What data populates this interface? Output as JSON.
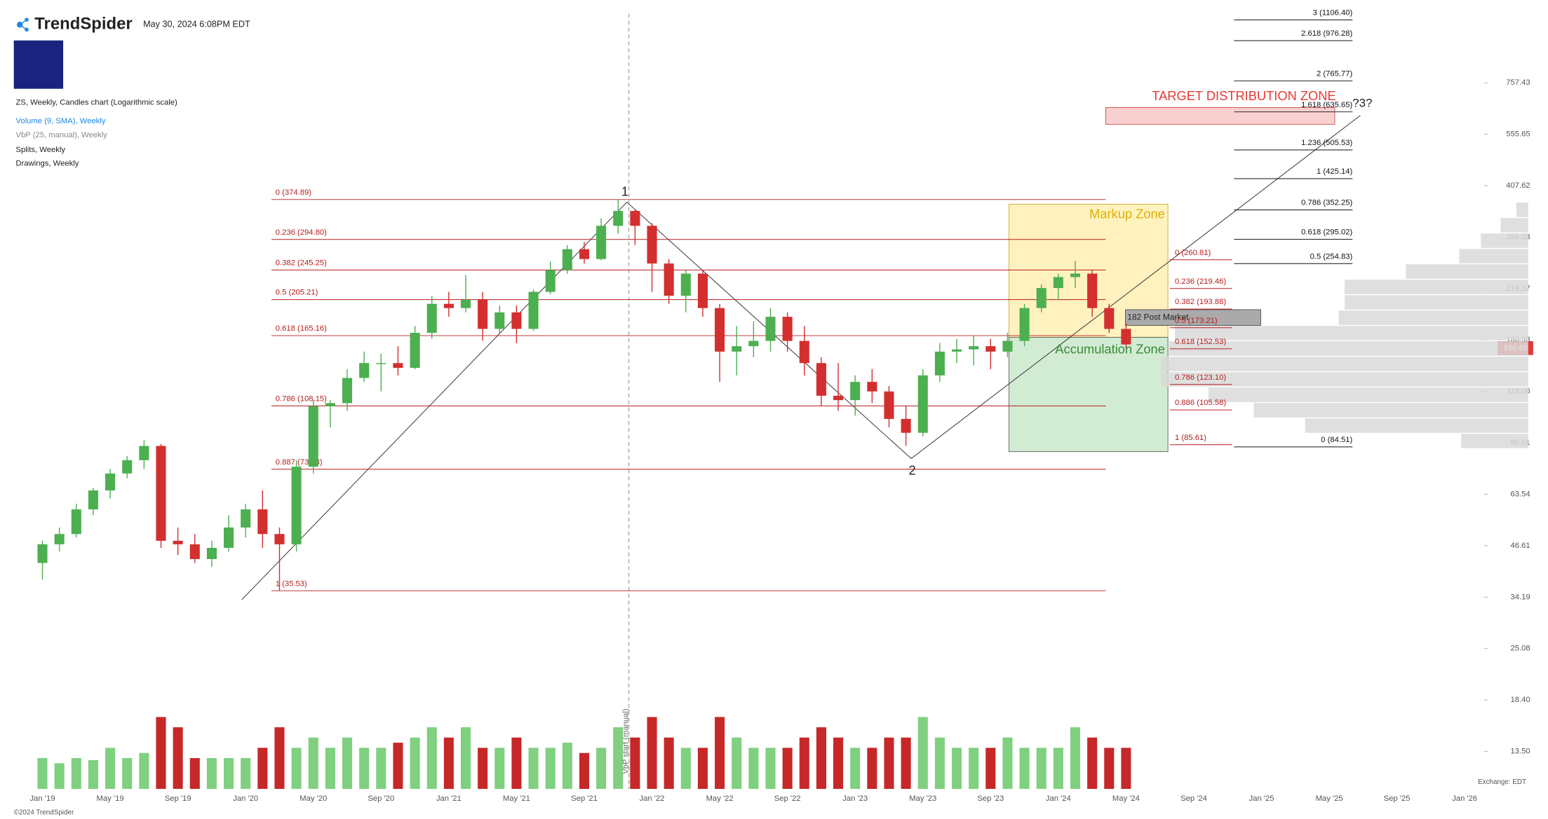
{
  "header": {
    "brand": "TrendSpider",
    "timestamp": "May 30, 2024 6:08PM EDT"
  },
  "legend": [
    "ZS, Weekly, Candles chart (Logarithmic scale)",
    "Volume (9, SMA), Weekly",
    "VbP (25, manual), Weekly",
    "Splits, Weekly",
    "Drawings, Weekly"
  ],
  "chart_data": {
    "type": "candlestick",
    "log_scale": true,
    "categories": [
      "Jan '19",
      null,
      null,
      null,
      "May '19",
      null,
      null,
      null,
      "Sep '19",
      null,
      null,
      null,
      "Jan '20",
      null,
      null,
      null,
      "May '20",
      null,
      null,
      null,
      "Sep '20",
      null,
      null,
      null,
      "Jan '21",
      null,
      null,
      null,
      "May '21",
      null,
      null,
      null,
      "Sep '21",
      null,
      null,
      null,
      "Jan '22",
      null,
      null,
      null,
      "May '22",
      null,
      null,
      null,
      "Sep '22",
      null,
      null,
      null,
      "Jan '23",
      null,
      null,
      null,
      "May '23",
      null,
      null,
      null,
      "Sep '23",
      null,
      null,
      null,
      "Jan '24",
      null,
      null,
      null,
      "May '24",
      null,
      null,
      null,
      "Sep '24",
      null,
      null,
      null,
      "Jan '25",
      null,
      null,
      null,
      "May '25",
      null,
      null,
      null,
      "Sep '25",
      null,
      null,
      null,
      "Jan '26"
    ],
    "candles": {
      "up_color": "#4caf50",
      "down_color": "#d32f2f",
      "open": [
        42,
        47,
        50,
        58,
        65,
        72,
        78,
        85,
        48,
        47,
        43,
        46,
        52,
        58,
        50,
        47,
        75,
        108,
        110,
        128,
        140,
        140,
        136,
        168,
        200,
        195,
        205,
        172,
        190,
        172,
        215,
        245,
        278,
        262,
        320,
        350,
        320,
        255,
        210,
        240,
        195,
        150,
        155,
        160,
        185,
        160,
        140,
        115,
        112,
        125,
        118,
        100,
        92,
        130,
        150,
        152,
        155,
        150,
        160,
        195,
        220,
        235,
        240,
        195,
        172,
        null,
        null,
        null,
        null,
        null,
        null,
        null,
        null,
        null,
        null,
        null,
        null,
        null,
        null,
        null,
        null,
        null,
        null,
        null,
        null
      ],
      "high": [
        48,
        52,
        60,
        66,
        74,
        80,
        88,
        86,
        52,
        50,
        48,
        56,
        60,
        65,
        52,
        78,
        112,
        112,
        135,
        150,
        148,
        155,
        175,
        210,
        215,
        238,
        215,
        198,
        198,
        218,
        258,
        285,
        290,
        335,
        376,
        352,
        325,
        262,
        245,
        245,
        200,
        175,
        180,
        195,
        190,
        175,
        145,
        140,
        130,
        135,
        122,
        108,
        135,
        158,
        162,
        165,
        162,
        168,
        200,
        225,
        240,
        259,
        245,
        200,
        178,
        null,
        null,
        null,
        null,
        null,
        null,
        null,
        null,
        null,
        null,
        null,
        null,
        null,
        null,
        null,
        null,
        null,
        null,
        null,
        null
      ],
      "low": [
        38,
        45,
        49,
        56,
        62,
        70,
        74,
        46,
        44,
        42,
        41,
        45,
        49,
        46,
        35.5,
        45,
        72,
        95,
        105,
        125,
        118,
        130,
        135,
        162,
        185,
        190,
        160,
        168,
        158,
        170,
        212,
        240,
        255,
        260,
        305,
        285,
        215,
        200,
        190,
        185,
        125,
        130,
        145,
        150,
        150,
        130,
        108,
        105,
        102,
        110,
        95,
        85,
        90,
        125,
        140,
        138,
        135,
        145,
        155,
        190,
        205,
        220,
        185,
        168,
        153,
        null,
        null,
        null,
        null,
        null,
        null,
        null,
        null,
        null,
        null,
        null,
        null,
        null,
        null,
        null,
        null,
        null,
        null,
        null,
        null
      ],
      "close": [
        47,
        50,
        58,
        65,
        72,
        78,
        85,
        48,
        47,
        43,
        46,
        52,
        58,
        50,
        47,
        75,
        108,
        110,
        128,
        140,
        140,
        136,
        168,
        200,
        195,
        205,
        172,
        190,
        172,
        215,
        245,
        278,
        262,
        320,
        350,
        320,
        255,
        210,
        240,
        195,
        150,
        155,
        160,
        185,
        160,
        140,
        115,
        112,
        125,
        118,
        100,
        92,
        130,
        150,
        152,
        155,
        150,
        160,
        195,
        220,
        235,
        240,
        195,
        172,
        156.65,
        null,
        null,
        null,
        null,
        null,
        null,
        null,
        null,
        null,
        null,
        null,
        null,
        null,
        null,
        null,
        null,
        null,
        null,
        null,
        null
      ]
    },
    "volume": {
      "up_color": "#7fd07f",
      "down_color": "#c62828",
      "ylim": [
        0,
        24
      ],
      "values": [
        3,
        2.5,
        3,
        2.8,
        4,
        3,
        3.5,
        7,
        6,
        3,
        3,
        3,
        3,
        4,
        6,
        4,
        5,
        4,
        5,
        4,
        4,
        4.5,
        5,
        6,
        5,
        6,
        4,
        4,
        5,
        4,
        4,
        4.5,
        3.5,
        4,
        6,
        5,
        7,
        5,
        4,
        4,
        7,
        5,
        4,
        4,
        4,
        5,
        6,
        5,
        4,
        4,
        5,
        5,
        7,
        5,
        4,
        4,
        4,
        5,
        4,
        4,
        4,
        6,
        5,
        4,
        4,
        null,
        null,
        null,
        null,
        null,
        null,
        null,
        null,
        null,
        null,
        null,
        null,
        null,
        null,
        null,
        null,
        null,
        null,
        null,
        null
      ]
    },
    "ylim": [
      10.77,
      1175
    ],
    "yticks": [
      757.43,
      555.65,
      407.62,
      299.03,
      219.37,
      160.93,
      118.06,
      86.61,
      63.54,
      46.61,
      34.19,
      25.08,
      {
        "value": 18.4,
        "label": "18.40"
      },
      {
        "value": 13.5,
        "label": "13.50"
      }
    ],
    "last_price": 156.65,
    "post_market": {
      "value": 182,
      "label": "182 Post Market"
    },
    "vbp": {
      "color": "#d9d9d9",
      "xlim": [
        0,
        100
      ],
      "bins": [
        83.6,
        91.7,
        100.6,
        110.4,
        121.2,
        132.9,
        145.9,
        160.1,
        175.6,
        192.7,
        211.4,
        232.1,
        254.6,
        279.3,
        306.6,
        336.4,
        369.1
      ],
      "values": [
        17,
        56.5,
        69.5,
        81,
        93,
        93,
        91,
        89.5,
        48,
        46.5,
        46.5,
        31,
        17.5,
        12,
        7,
        3
      ]
    },
    "fib_left": [
      {
        "value": 374.89,
        "label": "0 (374.89)"
      },
      {
        "value": 294.8,
        "label": "0.236 (294.80)"
      },
      {
        "value": 245.25,
        "label": "0.382 (245.25)"
      },
      {
        "value": 205.21,
        "label": "0.5 (205.21)"
      },
      {
        "value": 165.16,
        "label": "0.618 (165.16)"
      },
      {
        "value": 108.15,
        "label": "0.786 (108.15)"
      },
      {
        "value": 73.88,
        "label": "0.887 (73.88)"
      },
      {
        "value": 35.53,
        "label": "1 (35.53)"
      }
    ],
    "fib_right": [
      {
        "value": 260.81,
        "label": "0 (260.81)"
      },
      {
        "value": 219.46,
        "label": "0.236 (219.46)"
      },
      {
        "value": 193.88,
        "label": "0.382 (193.88)"
      },
      {
        "value": 173.21,
        "label": "0.5 (173.21)"
      },
      {
        "value": 152.53,
        "label": "0.618 (152.53)"
      },
      {
        "value": 123.1,
        "label": "0.786 (123.10)"
      },
      {
        "value": 105.58,
        "label": "0.886 (105.58)"
      },
      {
        "value": 85.61,
        "label": "1 (85.61)"
      }
    ],
    "fib_extension": [
      {
        "value": 1106.4,
        "label": "3 (1106.40)"
      },
      {
        "value": 976.28,
        "label": "2.618 (976.28)"
      },
      {
        "value": 765.77,
        "label": "2 (765.77)"
      },
      {
        "value": 635.65,
        "label": "1.618 (635.65)"
      },
      {
        "value": 505.53,
        "label": "1.236 (505.53)"
      },
      {
        "value": 425.14,
        "label": "1 (425.14)"
      },
      {
        "value": 352.25,
        "label": "0.786 (352.25)"
      },
      {
        "value": 295.02,
        "label": "0.618 (295.02)"
      },
      {
        "value": 254.83,
        "label": "0.5 (254.83)"
      },
      {
        "value": 84.51,
        "label": "0 (84.51)"
      }
    ],
    "annotations": {
      "wave_1": "1",
      "wave_2": "2",
      "wave_3": "?3?",
      "markup": "Markup Zone",
      "accumulation": "Accumulation Zone",
      "target": "TARGET DISTRIBUTION ZONE",
      "vbp_start": "VbP start (manual)"
    }
  },
  "footer": {
    "exchange": "Exchange: EDT",
    "copyright": "©2024 TrendSpider"
  }
}
